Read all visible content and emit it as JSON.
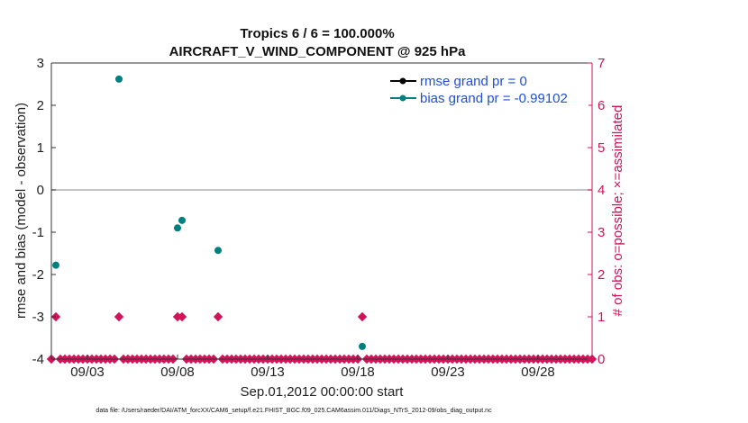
{
  "chart_data": {
    "type": "scatter",
    "title_line1": "Tropics 6 / 6 = 100.000%",
    "title_line2": "AIRCRAFT_V_WIND_COMPONENT @ 925 hPa",
    "ylabel_left": "rmse and bias (model - observation)",
    "ylabel_right": "# of obs: o=possible; ×=assimilated",
    "xlabel": "Sep.01,2012 00:00:00 start",
    "footnote": "data file: /Users/raeder/DAI/ATM_forcXX/CAM6_setup/f.e21.FHIST_BGC.f09_025.CAM6assim.011/Diags_NTrS_2012-09/obs_diag_output.nc",
    "ylim_left": [
      -4,
      3
    ],
    "ylim_right": [
      0,
      7
    ],
    "xlim": [
      1.0,
      31.0
    ],
    "yticks_left": [
      -4,
      -3,
      -2,
      -1,
      0,
      1,
      2,
      3
    ],
    "yticks_left_labels": [
      "-4",
      "-3",
      "-2",
      "-1",
      "0",
      "1",
      "2",
      "3"
    ],
    "yticks_right": [
      0,
      1,
      2,
      3,
      4,
      5,
      6,
      7
    ],
    "yticks_right_labels": [
      "0",
      "1",
      "2",
      "3",
      "4",
      "5",
      "6",
      "7"
    ],
    "xticks": [
      3,
      8,
      13,
      18,
      23,
      28
    ],
    "xtick_labels": [
      "09/03",
      "09/08",
      "09/13",
      "09/18",
      "09/23",
      "09/28"
    ],
    "zero_line": 0,
    "legend": {
      "position": "top-right",
      "entries": [
        "rmse grand pr = 0",
        "bias grand pr = -0.99102"
      ]
    },
    "colors": {
      "rmse": "#000000",
      "bias": "#008080",
      "obs": "#d1145a",
      "zero_line": "#b0b0b0"
    },
    "series": [
      {
        "name": "bias",
        "x": [
          1.25,
          4.75,
          8.0,
          8.25,
          10.25,
          18.25
        ],
        "values": [
          -1.78,
          2.62,
          -0.9,
          -0.72,
          -1.43,
          -3.7
        ]
      }
    ],
    "obs_possible": {
      "x": [
        1.25,
        4.75,
        8.0,
        8.25,
        10.25,
        18.25
      ],
      "values": [
        1,
        1,
        1,
        1,
        1,
        1
      ]
    },
    "obs_zero_step": 0.25
  }
}
